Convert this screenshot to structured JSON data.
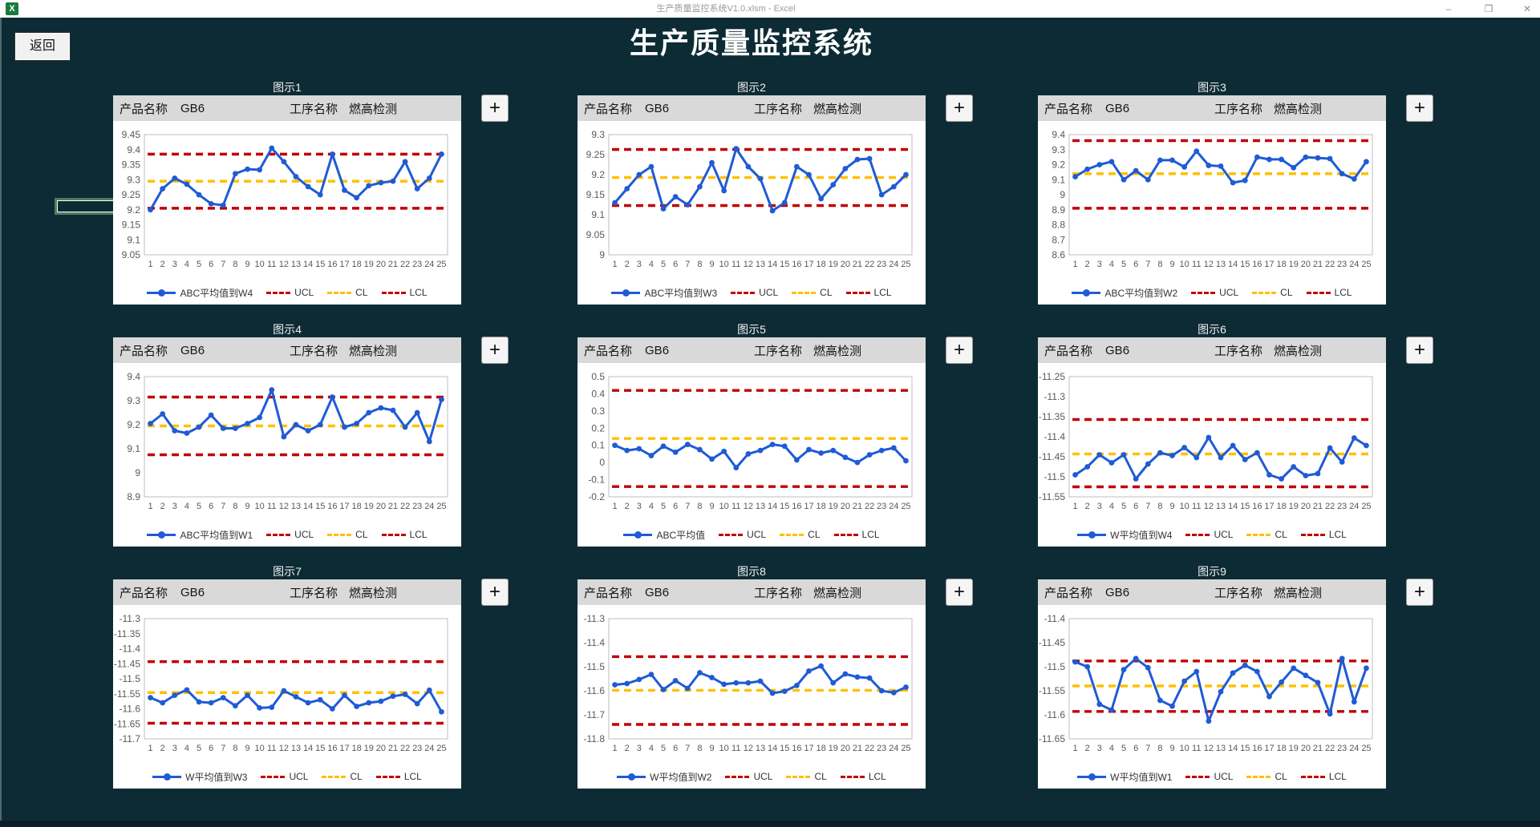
{
  "window": {
    "title": "生产质量监控系统V1.0.xlsm - Excel",
    "excel_icon": "excel-icon",
    "controls": [
      "minimize-icon",
      "maximize-icon",
      "close-icon"
    ]
  },
  "header": {
    "back_label": "返回",
    "app_title": "生产质量监控系统"
  },
  "card_header": {
    "product_label": "产品名称",
    "product_value": "GB6",
    "process_label": "工序名称",
    "process_value": "燃高检测"
  },
  "add_button_label": "+",
  "legend_labels": {
    "ucl": "UCL",
    "cl": "CL",
    "lcl": "LCL"
  },
  "colors": {
    "background": "#0d2b34",
    "series_line": "#1f5bd4",
    "ucl_lcl_line": "#c00000",
    "cl_line": "#ffc000",
    "card_header_bg": "#d9d9d9"
  },
  "x_categories": [
    1,
    2,
    3,
    4,
    5,
    6,
    7,
    8,
    9,
    10,
    11,
    12,
    13,
    14,
    15,
    16,
    17,
    18,
    19,
    20,
    21,
    22,
    23,
    24,
    25
  ],
  "chart_data": [
    {
      "type": "line",
      "title": "图示1",
      "series_name": "ABC平均值到W4",
      "ylim": [
        9.05,
        9.45
      ],
      "ystep": 0.05,
      "ucl": 9.385,
      "cl": 9.295,
      "lcl": 9.205,
      "values": [
        9.2,
        9.27,
        9.305,
        9.285,
        9.25,
        9.22,
        9.215,
        9.32,
        9.335,
        9.333,
        9.405,
        9.36,
        9.31,
        9.277,
        9.25,
        9.385,
        9.265,
        9.24,
        9.28,
        9.29,
        9.295,
        9.36,
        9.27,
        9.305,
        9.385
      ]
    },
    {
      "type": "line",
      "title": "图示2",
      "series_name": "ABC平均值到W3",
      "ylim": [
        9.0,
        9.3
      ],
      "ystep": 0.05,
      "ucl": 9.263,
      "cl": 9.193,
      "lcl": 9.123,
      "values": [
        9.13,
        9.165,
        9.2,
        9.22,
        9.115,
        9.145,
        9.125,
        9.17,
        9.23,
        9.16,
        9.265,
        9.22,
        9.19,
        9.11,
        9.13,
        9.22,
        9.2,
        9.14,
        9.175,
        9.215,
        9.238,
        9.24,
        9.15,
        9.17,
        9.2
      ]
    },
    {
      "type": "line",
      "title": "图示3",
      "series_name": "ABC平均值到W2",
      "ylim": [
        8.6,
        9.4
      ],
      "ystep": 0.1,
      "ucl": 9.36,
      "cl": 9.14,
      "lcl": 8.91,
      "values": [
        9.12,
        9.17,
        9.2,
        9.22,
        9.1,
        9.16,
        9.1,
        9.23,
        9.23,
        9.185,
        9.29,
        9.195,
        9.19,
        9.08,
        9.095,
        9.25,
        9.235,
        9.235,
        9.18,
        9.25,
        9.245,
        9.24,
        9.14,
        9.105,
        9.22
      ]
    },
    {
      "type": "line",
      "title": "图示4",
      "series_name": "ABC平均值到W1",
      "ylim": [
        8.9,
        9.4
      ],
      "ystep": 0.1,
      "ucl": 9.315,
      "cl": 9.195,
      "lcl": 9.075,
      "values": [
        9.205,
        9.245,
        9.175,
        9.165,
        9.19,
        9.24,
        9.185,
        9.185,
        9.205,
        9.23,
        9.345,
        9.15,
        9.2,
        9.175,
        9.2,
        9.315,
        9.19,
        9.205,
        9.25,
        9.27,
        9.26,
        9.19,
        9.25,
        9.13,
        9.305
      ]
    },
    {
      "type": "line",
      "title": "图示5",
      "series_name": "ABC平均值",
      "ylim": [
        -0.2,
        0.5
      ],
      "ystep": 0.1,
      "ucl": 0.42,
      "cl": 0.14,
      "lcl": -0.14,
      "values": [
        0.1,
        0.07,
        0.08,
        0.04,
        0.095,
        0.06,
        0.105,
        0.075,
        0.02,
        0.065,
        -0.03,
        0.05,
        0.07,
        0.105,
        0.095,
        0.015,
        0.075,
        0.055,
        0.07,
        0.03,
        0.0,
        0.045,
        0.07,
        0.085,
        0.01
      ]
    },
    {
      "type": "line",
      "title": "图示6",
      "series_name": "W平均值到W4",
      "ylim": [
        -11.55,
        -11.25
      ],
      "ystep": 0.05,
      "ucl": -11.357,
      "cl": -11.443,
      "lcl": -11.525,
      "values": [
        -11.495,
        -11.475,
        -11.445,
        -11.465,
        -11.445,
        -11.505,
        -11.468,
        -11.44,
        -11.447,
        -11.427,
        -11.452,
        -11.402,
        -11.452,
        -11.422,
        -11.457,
        -11.44,
        -11.495,
        -11.505,
        -11.475,
        -11.497,
        -11.492,
        -11.428,
        -11.463,
        -11.403,
        -11.422
      ]
    },
    {
      "type": "line",
      "title": "图示7",
      "series_name": "W平均值到W3",
      "ylim": [
        -11.7,
        -11.3
      ],
      "ystep": 0.05,
      "ucl": -11.443,
      "cl": -11.546,
      "lcl": -11.648,
      "values": [
        -11.563,
        -11.58,
        -11.555,
        -11.537,
        -11.577,
        -11.58,
        -11.563,
        -11.59,
        -11.555,
        -11.597,
        -11.595,
        -11.54,
        -11.56,
        -11.58,
        -11.57,
        -11.6,
        -11.555,
        -11.592,
        -11.58,
        -11.575,
        -11.558,
        -11.552,
        -11.583,
        -11.538,
        -11.61
      ]
    },
    {
      "type": "line",
      "title": "图示8",
      "series_name": "W平均值到W2",
      "ylim": [
        -11.8,
        -11.3
      ],
      "ystep": 0.1,
      "ucl": -11.458,
      "cl": -11.598,
      "lcl": -11.74,
      "values": [
        -11.575,
        -11.57,
        -11.553,
        -11.532,
        -11.595,
        -11.558,
        -11.59,
        -11.525,
        -11.545,
        -11.573,
        -11.567,
        -11.567,
        -11.56,
        -11.61,
        -11.602,
        -11.578,
        -11.518,
        -11.497,
        -11.567,
        -11.53,
        -11.543,
        -11.547,
        -11.6,
        -11.608,
        -11.585
      ]
    },
    {
      "type": "line",
      "title": "图示9",
      "series_name": "W平均值到W1",
      "ylim": [
        -11.65,
        -11.4
      ],
      "ystep": 0.05,
      "ucl": -11.488,
      "cl": -11.54,
      "lcl": -11.593,
      "values": [
        -11.49,
        -11.5,
        -11.578,
        -11.59,
        -11.506,
        -11.483,
        -11.502,
        -11.57,
        -11.582,
        -11.53,
        -11.51,
        -11.613,
        -11.552,
        -11.513,
        -11.497,
        -11.51,
        -11.562,
        -11.532,
        -11.503,
        -11.518,
        -11.533,
        -11.598,
        -11.483,
        -11.573,
        -11.503
      ]
    }
  ]
}
